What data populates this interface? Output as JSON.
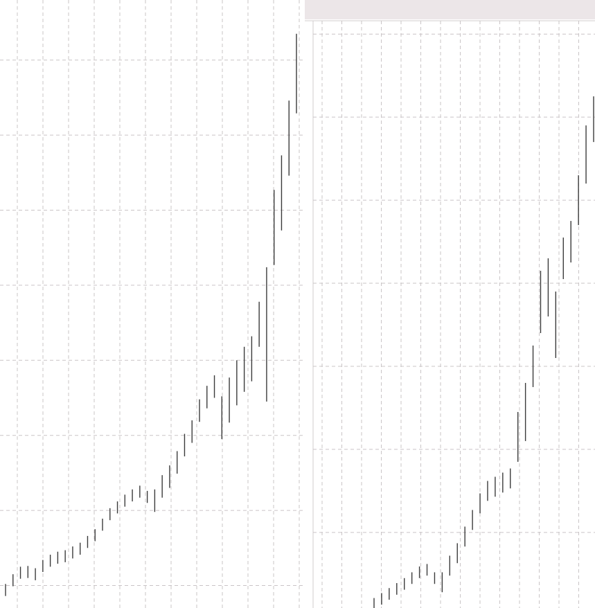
{
  "chart_data": [
    {
      "type": "hilo",
      "grid": true,
      "color": "#3a3a3a",
      "ylim": [
        -3,
        78
      ],
      "yticks": [
        0,
        10,
        20,
        30,
        40,
        50,
        60,
        70
      ],
      "low": [
        -1.4,
        -0.1,
        0.9,
        1.0,
        0.7,
        1.8,
        2.5,
        2.9,
        3.1,
        3.6,
        4.1,
        5.0,
        5.9,
        7.3,
        8.7,
        9.6,
        10.5,
        11.2,
        11.7,
        11.0,
        9.8,
        11.7,
        13.0,
        14.9,
        17.2,
        19.0,
        21.8,
        23.6,
        25.0,
        19.5,
        21.7,
        24.0,
        25.8,
        27.2,
        31.8,
        24.5,
        42.7,
        47.3,
        54.6,
        62.9
      ],
      "high": [
        0.2,
        1.5,
        2.5,
        2.6,
        2.3,
        3.4,
        4.1,
        4.5,
        4.7,
        5.2,
        5.7,
        6.6,
        7.5,
        8.9,
        10.3,
        11.2,
        12.1,
        12.8,
        13.3,
        12.6,
        12.8,
        14.7,
        16.0,
        17.9,
        20.2,
        22.0,
        24.8,
        26.6,
        28.0,
        25.2,
        27.7,
        30.0,
        31.8,
        33.2,
        37.8,
        42.4,
        52.7,
        57.3,
        64.6,
        73.5
      ]
    },
    {
      "type": "hilo",
      "grid": true,
      "color": "#3a3a3a",
      "ylim": [
        -9.1,
        61.6
      ],
      "yticks": [
        0,
        10,
        20,
        30,
        40,
        50,
        60
      ],
      "low": [
        -9.3,
        -8.7,
        -8.1,
        -7.5,
        -6.9,
        -6.2,
        -5.5,
        -5.2,
        -6.2,
        -7.2,
        -5.2,
        -3.7,
        -1.7,
        0.3,
        2.3,
        3.8,
        4.3,
        4.8,
        5.3,
        8.5,
        11,
        17.5,
        24,
        26,
        21,
        30.5,
        32.5,
        37,
        42,
        47
      ],
      "high": [
        -7.9,
        -7.3,
        -6.7,
        -6.1,
        -5.5,
        -4.8,
        -4.1,
        -3.8,
        -4.8,
        -4.8,
        -2.8,
        -1.3,
        0.7,
        2.7,
        4.7,
        6.2,
        6.7,
        7.2,
        7.7,
        14.5,
        18,
        22.5,
        31.5,
        33,
        29,
        35.5,
        37.5,
        43,
        49,
        52.5
      ]
    }
  ]
}
